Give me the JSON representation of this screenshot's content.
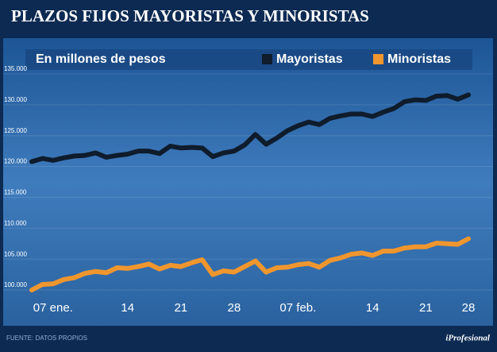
{
  "chart_data": {
    "type": "line",
    "title": "PLAZOS FIJOS MAYORISTAS Y MINORISTAS",
    "subtitle": "En millones de pesos",
    "source": "FUENTE: DATOS PROPIOS",
    "brand": "iProfesional",
    "categories": [
      null,
      null,
      "07 ene.",
      null,
      null,
      null,
      null,
      null,
      null,
      "14",
      null,
      null,
      null,
      null,
      "21",
      null,
      null,
      null,
      null,
      "28",
      null,
      null,
      null,
      null,
      null,
      "07 feb.",
      null,
      null,
      null,
      null,
      null,
      null,
      "14",
      null,
      null,
      null,
      null,
      "21",
      null,
      null,
      null,
      "28"
    ],
    "series": [
      {
        "name": "Mayoristas",
        "color": "#0f1c2c",
        "values": [
          120800,
          121300,
          121000,
          121400,
          121700,
          121800,
          122200,
          121500,
          121800,
          122000,
          122500,
          122500,
          122100,
          123300,
          123000,
          123100,
          123000,
          121600,
          122200,
          122500,
          123500,
          125200,
          123600,
          124600,
          125800,
          126600,
          127200,
          126800,
          127800,
          128200,
          128500,
          128500,
          128100,
          128800,
          129400,
          130500,
          130800,
          130700,
          131400,
          131500,
          130900,
          131600
        ]
      },
      {
        "name": "Minoristas",
        "color": "#f0962e",
        "values": [
          100000,
          100900,
          101000,
          101700,
          102000,
          102700,
          103000,
          102800,
          103600,
          103500,
          103800,
          104200,
          103400,
          104000,
          103800,
          104400,
          104900,
          102500,
          103100,
          102900,
          103800,
          104700,
          102900,
          103600,
          103700,
          104100,
          104300,
          103700,
          104800,
          105200,
          105800,
          106000,
          105600,
          106300,
          106300,
          106800,
          107000,
          107000,
          107600,
          107500,
          107400,
          108300
        ]
      }
    ],
    "ylim": [
      99000,
      136000
    ],
    "yticks": [
      {
        "value": 100000,
        "label": "100.000"
      },
      {
        "value": 105000,
        "label": "105.000"
      },
      {
        "value": 110000,
        "label": "110.000"
      },
      {
        "value": 115000,
        "label": "115.000"
      },
      {
        "value": 120000,
        "label": "120.000"
      },
      {
        "value": 125000,
        "label": "125.000"
      },
      {
        "value": 130000,
        "label": "130.000"
      },
      {
        "value": 135000,
        "label": "135.000"
      }
    ],
    "grid": true
  }
}
